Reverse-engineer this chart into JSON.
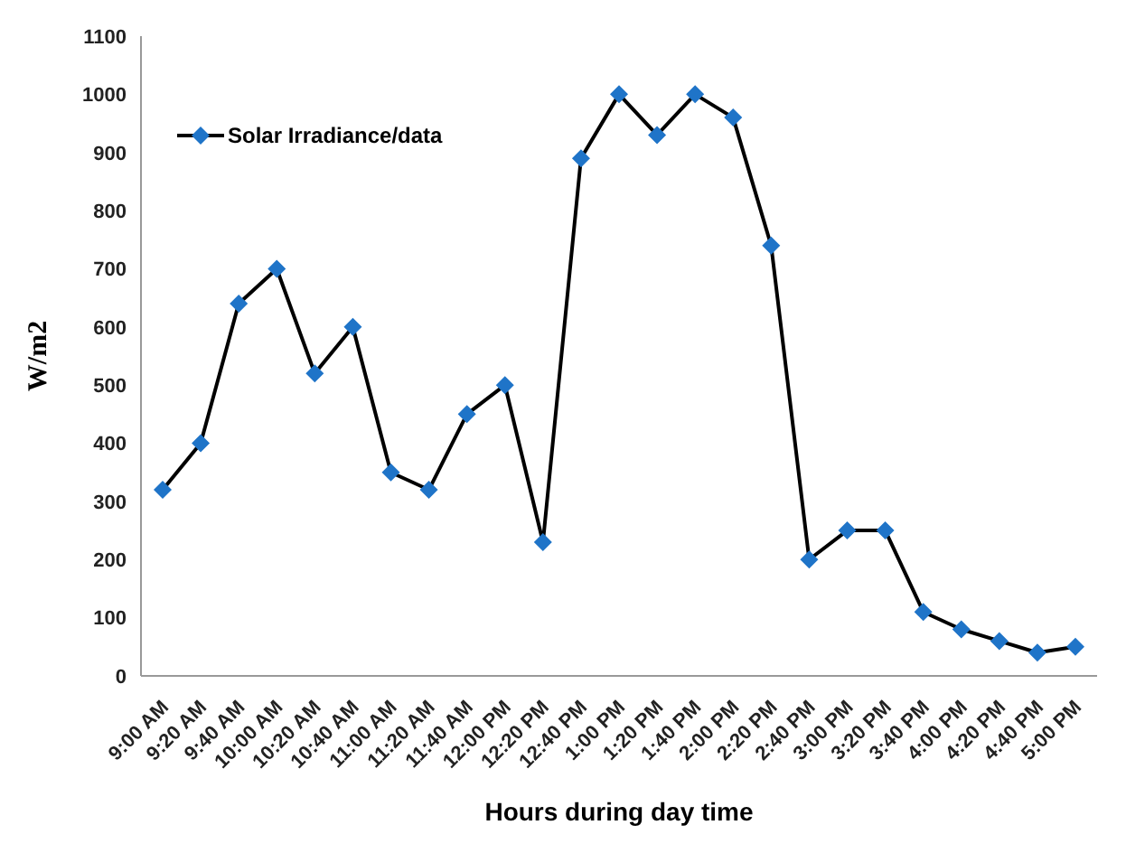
{
  "chart_data": {
    "type": "line",
    "xlabel": "Hours during day time",
    "ylabel": "W/m2",
    "categories": [
      "9:00 AM",
      "9:20 AM",
      "9:40 AM",
      "10:00 AM",
      "10:20 AM",
      "10:40 AM",
      "11:00 AM",
      "11:20 AM",
      "11:40 AM",
      "12:00 PM",
      "12:20 PM",
      "12:40 PM",
      "1:00 PM",
      "1:20 PM",
      "1:40 PM",
      "2:00 PM",
      "2:20 PM",
      "2:40 PM",
      "3:00 PM",
      "3:20 PM",
      "3:40 PM",
      "4:00 PM",
      "4:20 PM",
      "4:40 PM",
      "5:00 PM"
    ],
    "series": [
      {
        "name": "Solar Irradiance/data",
        "color": "#000000",
        "values": [
          320,
          400,
          640,
          700,
          520,
          600,
          350,
          320,
          450,
          500,
          230,
          890,
          1000,
          930,
          1000,
          960,
          740,
          200,
          250,
          250,
          110,
          80,
          60,
          40,
          50
        ]
      }
    ],
    "ylim": [
      0,
      1100
    ],
    "yticks": [
      0,
      100,
      200,
      300,
      400,
      500,
      600,
      700,
      800,
      900,
      1000,
      1100
    ],
    "grid": false,
    "legend": "top left",
    "marker": "diamond",
    "line_style": "solid"
  }
}
